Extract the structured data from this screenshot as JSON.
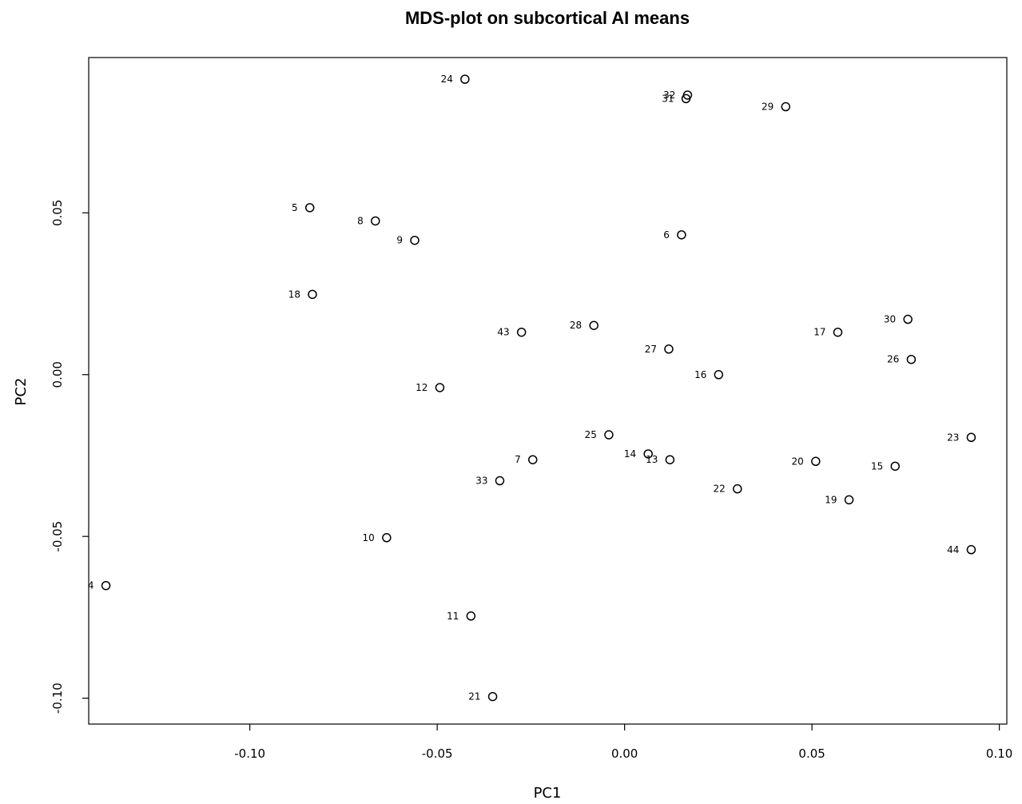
{
  "chart_data": {
    "type": "scatter",
    "title": "MDS-plot on subcortical AI means",
    "xlabel": "PC1",
    "ylabel": "PC2",
    "xlim": [
      -0.143,
      0.102
    ],
    "ylim": [
      -0.108,
      0.098
    ],
    "grid": false,
    "x_ticks": [
      -0.1,
      -0.05,
      0.0,
      0.05,
      0.1
    ],
    "x_tick_labels": [
      "-0.10",
      "-0.05",
      "0.00",
      "0.05",
      "0.10"
    ],
    "y_ticks": [
      -0.1,
      -0.05,
      0.0,
      0.05
    ],
    "y_tick_labels": [
      "-0.10",
      "-0.05",
      "0.00",
      "0.05"
    ],
    "points": [
      {
        "label": "24",
        "x": -0.0426,
        "y": 0.0913
      },
      {
        "label": "32",
        "x": 0.0168,
        "y": 0.0864
      },
      {
        "label": "31",
        "x": 0.0164,
        "y": 0.0853
      },
      {
        "label": "29",
        "x": 0.043,
        "y": 0.0828
      },
      {
        "label": "5",
        "x": -0.084,
        "y": 0.0516
      },
      {
        "label": "8",
        "x": -0.0665,
        "y": 0.0475
      },
      {
        "label": "9",
        "x": -0.056,
        "y": 0.0415
      },
      {
        "label": "6",
        "x": 0.0152,
        "y": 0.0432
      },
      {
        "label": "18",
        "x": -0.0833,
        "y": 0.0248
      },
      {
        "label": "43",
        "x": -0.0275,
        "y": 0.0131
      },
      {
        "label": "28",
        "x": -0.0082,
        "y": 0.0152
      },
      {
        "label": "27",
        "x": 0.0118,
        "y": 0.0079
      },
      {
        "label": "17",
        "x": 0.0569,
        "y": 0.0131
      },
      {
        "label": "30",
        "x": 0.0756,
        "y": 0.0171
      },
      {
        "label": "26",
        "x": 0.0765,
        "y": 0.0047
      },
      {
        "label": "16",
        "x": 0.0251,
        "y": 0.0
      },
      {
        "label": "12",
        "x": -0.0493,
        "y": -0.004
      },
      {
        "label": "25",
        "x": -0.0042,
        "y": -0.0186
      },
      {
        "label": "14",
        "x": 0.0063,
        "y": -0.0245
      },
      {
        "label": "13",
        "x": 0.0121,
        "y": -0.0263
      },
      {
        "label": "7",
        "x": -0.0245,
        "y": -0.0263
      },
      {
        "label": "20",
        "x": 0.051,
        "y": -0.0268
      },
      {
        "label": "15",
        "x": 0.0722,
        "y": -0.0283
      },
      {
        "label": "23",
        "x": 0.0925,
        "y": -0.0194
      },
      {
        "label": "33",
        "x": -0.0333,
        "y": -0.0328
      },
      {
        "label": "22",
        "x": 0.0301,
        "y": -0.0353
      },
      {
        "label": "19",
        "x": 0.0599,
        "y": -0.0387
      },
      {
        "label": "10",
        "x": -0.0635,
        "y": -0.0504
      },
      {
        "label": "44",
        "x": 0.0925,
        "y": -0.0541
      },
      {
        "label": "4",
        "x": -0.1384,
        "y": -0.0652
      },
      {
        "label": "11",
        "x": -0.041,
        "y": -0.0746
      },
      {
        "label": "21",
        "x": -0.0352,
        "y": -0.0995
      }
    ]
  }
}
